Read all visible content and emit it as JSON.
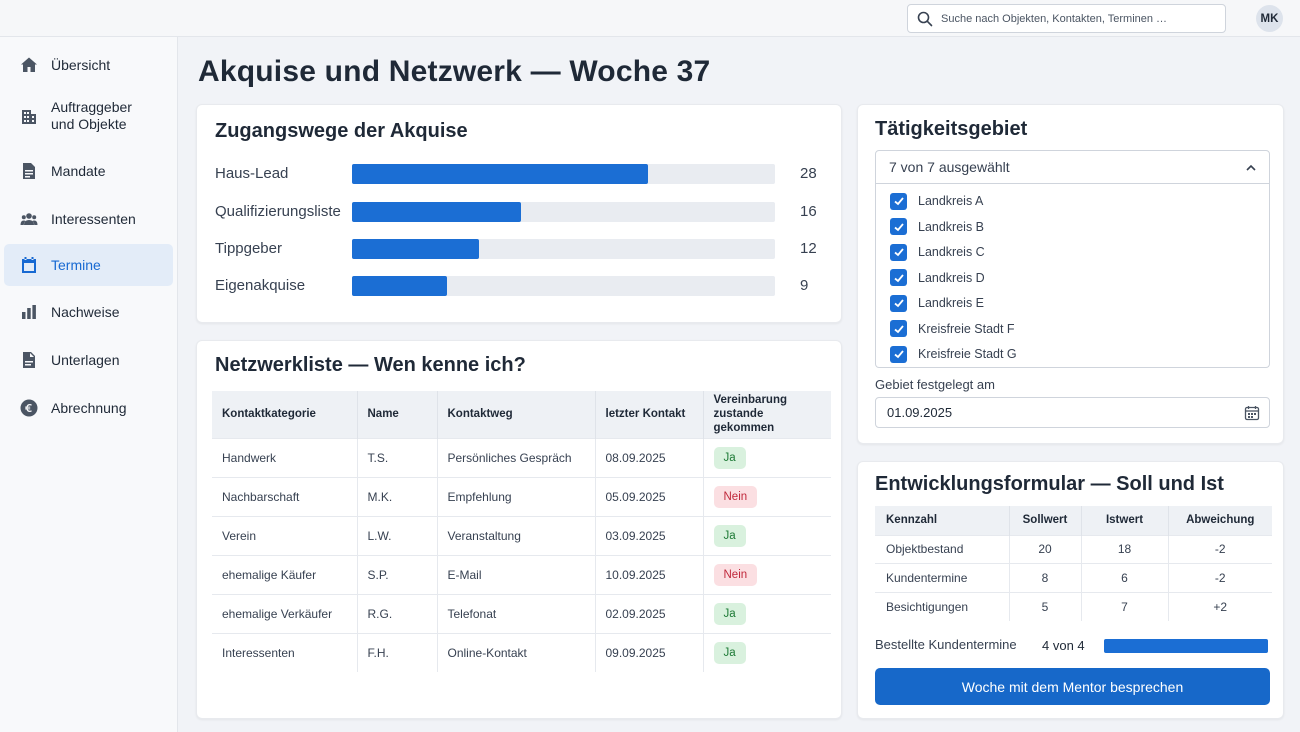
{
  "header": {
    "search_placeholder": "Suche nach Objekten, Kontakten, Terminen …",
    "avatar_initials": "MK"
  },
  "sidebar": {
    "items": [
      {
        "label": "Übersicht",
        "icon": "home-icon",
        "active": false
      },
      {
        "label": "Auftraggeber und Objekte",
        "icon": "building-icon",
        "active": false
      },
      {
        "label": "Mandate",
        "icon": "document-icon",
        "active": false
      },
      {
        "label": "Interessenten",
        "icon": "people-icon",
        "active": false
      },
      {
        "label": "Termine",
        "icon": "calendar-icon",
        "active": true
      },
      {
        "label": "Nachweise",
        "icon": "bar-chart-icon",
        "active": false
      },
      {
        "label": "Unterlagen",
        "icon": "file-icon",
        "active": false
      },
      {
        "label": "Abrechnung",
        "icon": "euro-icon",
        "active": false
      }
    ]
  },
  "page": {
    "title": "Akquise und Netzwerk — Woche 37"
  },
  "acquisition": {
    "title": "Zugangswege der Akquise",
    "chart_data": {
      "type": "bar",
      "categories": [
        "Haus-Lead",
        "Qualifizierungsliste",
        "Tippgeber",
        "Eigenakquise"
      ],
      "values": [
        28,
        16,
        12,
        9
      ],
      "xlim": [
        0,
        40
      ],
      "colors": {
        "bar": "#1b6ed4",
        "track": "#e9ecf1"
      }
    }
  },
  "network": {
    "title": "Netzwerkliste — Wen kenne ich?",
    "columns": [
      "Kontaktkategorie",
      "Name",
      "Kontaktweg",
      "letzter Kontakt",
      "Vereinbarung zustande gekommen"
    ],
    "rows": [
      {
        "category": "Handwerk",
        "name": "T.S.",
        "channel": "Persönliches Gespräch",
        "last": "08.09.2025",
        "agreement": "Ja"
      },
      {
        "category": "Nachbarschaft",
        "name": "M.K.",
        "channel": "Empfehlung",
        "last": "05.09.2025",
        "agreement": "Nein"
      },
      {
        "category": "Verein",
        "name": "L.W.",
        "channel": "Veranstaltung",
        "last": "03.09.2025",
        "agreement": "Ja"
      },
      {
        "category": "ehemalige Käufer",
        "name": "S.P.",
        "channel": "E-Mail",
        "last": "10.09.2025",
        "agreement": "Nein"
      },
      {
        "category": "ehemalige Verkäufer",
        "name": "R.G.",
        "channel": "Telefonat",
        "last": "02.09.2025",
        "agreement": "Ja"
      },
      {
        "category": "Interessenten",
        "name": "F.H.",
        "channel": "Online-Kontakt",
        "last": "09.09.2025",
        "agreement": "Ja"
      }
    ]
  },
  "region": {
    "title": "Tätigkeitsgebiet",
    "select_summary": "7 von 7 ausgewählt",
    "options": [
      {
        "label": "Landkreis A",
        "checked": true
      },
      {
        "label": "Landkreis B",
        "checked": true
      },
      {
        "label": "Landkreis C",
        "checked": true
      },
      {
        "label": "Landkreis D",
        "checked": true
      },
      {
        "label": "Landkreis E",
        "checked": true
      },
      {
        "label": "Kreisfreie Stadt F",
        "checked": true
      },
      {
        "label": "Kreisfreie Stadt G",
        "checked": true
      }
    ],
    "date_label": "Gebiet festgelegt am",
    "date_value": "01.09.2025"
  },
  "development": {
    "title": "Entwicklungsformular — Soll und Ist",
    "columns": [
      "Kennzahl",
      "Sollwert",
      "Istwert",
      "Abweichung"
    ],
    "rows": [
      {
        "metric": "Objektbestand",
        "target": "20",
        "actual": "18",
        "delta": "-2"
      },
      {
        "metric": "Kundentermine",
        "target": "8",
        "actual": "6",
        "delta": "-2"
      },
      {
        "metric": "Besichtigungen",
        "target": "5",
        "actual": "7",
        "delta": "+2"
      }
    ],
    "progress_label": "Bestellte Kundentermine",
    "progress_text": "4 von 4",
    "progress_fraction": 1.0,
    "button_label": "Woche mit dem Mentor besprechen"
  }
}
